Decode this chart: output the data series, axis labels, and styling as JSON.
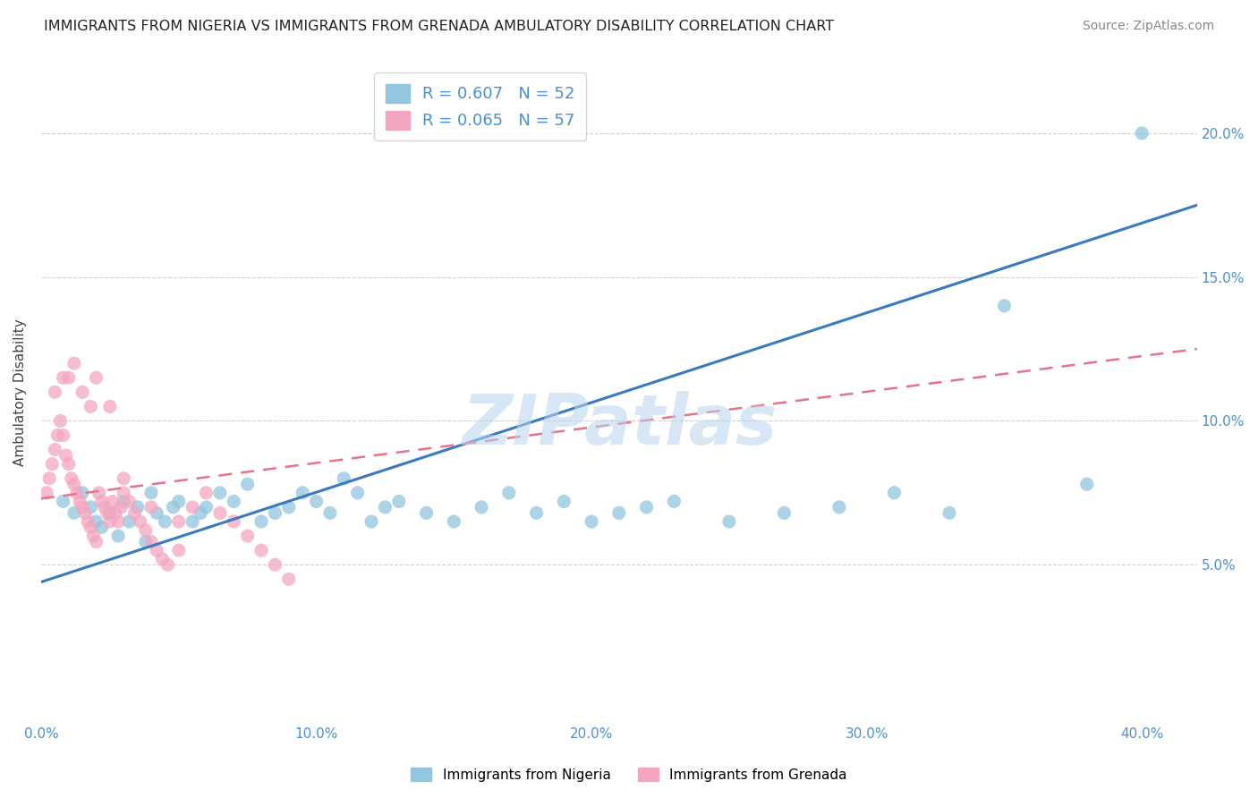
{
  "title": "IMMIGRANTS FROM NIGERIA VS IMMIGRANTS FROM GRENADA AMBULATORY DISABILITY CORRELATION CHART",
  "source": "Source: ZipAtlas.com",
  "ylabel": "Ambulatory Disability",
  "watermark": "ZIPatlas",
  "nigeria_R": 0.607,
  "nigeria_N": 52,
  "grenada_R": 0.065,
  "grenada_N": 57,
  "nigeria_color": "#92c5de",
  "grenada_color": "#f4a6c0",
  "nigeria_line_color": "#3a7abf",
  "grenada_line_color": "#e8728a",
  "xlim": [
    0.0,
    0.42
  ],
  "ylim": [
    -0.005,
    0.225
  ],
  "xticks": [
    0.0,
    0.1,
    0.2,
    0.3,
    0.4
  ],
  "yticks": [
    0.05,
    0.1,
    0.15,
    0.2
  ],
  "xticklabels": [
    "0.0%",
    "10.0%",
    "20.0%",
    "30.0%",
    "40.0%"
  ],
  "yticklabels": [
    "5.0%",
    "10.0%",
    "15.0%",
    "20.0%"
  ],
  "nigeria_line_x0": 0.0,
  "nigeria_line_y0": 0.044,
  "nigeria_line_x1": 0.42,
  "nigeria_line_y1": 0.175,
  "grenada_line_x0": 0.0,
  "grenada_line_y0": 0.073,
  "grenada_line_x1": 0.42,
  "grenada_line_y1": 0.125,
  "nigeria_scatter_x": [
    0.008,
    0.012,
    0.015,
    0.018,
    0.02,
    0.022,
    0.025,
    0.028,
    0.03,
    0.032,
    0.035,
    0.038,
    0.04,
    0.042,
    0.045,
    0.048,
    0.05,
    0.055,
    0.058,
    0.06,
    0.065,
    0.07,
    0.075,
    0.08,
    0.085,
    0.09,
    0.095,
    0.1,
    0.105,
    0.11,
    0.115,
    0.12,
    0.125,
    0.13,
    0.14,
    0.15,
    0.16,
    0.17,
    0.18,
    0.19,
    0.2,
    0.21,
    0.22,
    0.23,
    0.25,
    0.27,
    0.29,
    0.31,
    0.33,
    0.35,
    0.38,
    0.4
  ],
  "nigeria_scatter_y": [
    0.072,
    0.068,
    0.075,
    0.07,
    0.065,
    0.063,
    0.068,
    0.06,
    0.072,
    0.065,
    0.07,
    0.058,
    0.075,
    0.068,
    0.065,
    0.07,
    0.072,
    0.065,
    0.068,
    0.07,
    0.075,
    0.072,
    0.078,
    0.065,
    0.068,
    0.07,
    0.075,
    0.072,
    0.068,
    0.08,
    0.075,
    0.065,
    0.07,
    0.072,
    0.068,
    0.065,
    0.07,
    0.075,
    0.068,
    0.072,
    0.065,
    0.068,
    0.07,
    0.072,
    0.065,
    0.068,
    0.07,
    0.075,
    0.068,
    0.14,
    0.078,
    0.2
  ],
  "grenada_scatter_x": [
    0.002,
    0.003,
    0.004,
    0.005,
    0.006,
    0.007,
    0.008,
    0.009,
    0.01,
    0.011,
    0.012,
    0.013,
    0.014,
    0.015,
    0.016,
    0.017,
    0.018,
    0.019,
    0.02,
    0.021,
    0.022,
    0.023,
    0.024,
    0.025,
    0.026,
    0.027,
    0.028,
    0.029,
    0.03,
    0.032,
    0.034,
    0.036,
    0.038,
    0.04,
    0.042,
    0.044,
    0.046,
    0.05,
    0.055,
    0.06,
    0.065,
    0.07,
    0.075,
    0.08,
    0.085,
    0.09,
    0.01,
    0.015,
    0.02,
    0.025,
    0.005,
    0.008,
    0.012,
    0.018,
    0.03,
    0.04,
    0.05
  ],
  "grenada_scatter_y": [
    0.075,
    0.08,
    0.085,
    0.09,
    0.095,
    0.1,
    0.095,
    0.088,
    0.085,
    0.08,
    0.078,
    0.075,
    0.072,
    0.07,
    0.068,
    0.065,
    0.063,
    0.06,
    0.058,
    0.075,
    0.072,
    0.07,
    0.068,
    0.065,
    0.072,
    0.068,
    0.065,
    0.07,
    0.075,
    0.072,
    0.068,
    0.065,
    0.062,
    0.058,
    0.055,
    0.052,
    0.05,
    0.065,
    0.07,
    0.075,
    0.068,
    0.065,
    0.06,
    0.055,
    0.05,
    0.045,
    0.115,
    0.11,
    0.115,
    0.105,
    0.11,
    0.115,
    0.12,
    0.105,
    0.08,
    0.07,
    0.055
  ],
  "background_color": "#ffffff",
  "grid_color": "#d0d0d0"
}
